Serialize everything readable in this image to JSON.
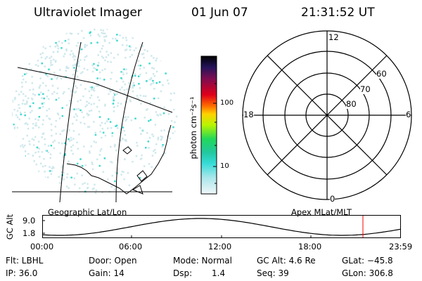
{
  "header": {
    "title": "Ultraviolet Imager",
    "date": "01 Jun 07",
    "time": "21:31:52 UT"
  },
  "geo_panel": {
    "label": "Geographic Lat/Lon"
  },
  "colorbar": {
    "unit_label": "photon cm⁻²s⁻¹",
    "ticks": [
      "100",
      "10"
    ]
  },
  "polar_panel": {
    "label": "Apex MLat/MLT",
    "mlt_labels": {
      "top": "12",
      "left": "18",
      "right": "6",
      "bottom": "0"
    },
    "lat_labels": [
      "60",
      "70",
      "80"
    ]
  },
  "altitude_plot": {
    "ylabel": "GC Alt",
    "yticks": [
      "9.0",
      "1.8"
    ],
    "xticks": [
      "00:00",
      "06:00",
      "12:00",
      "18:00",
      "23:59"
    ],
    "marker_color": "#ff0000"
  },
  "status": {
    "flt": "Flt: LBHL",
    "ip": "IP: 36.0",
    "door": "Door: Open",
    "gain": "Gain: 14",
    "mode": "Mode: Normal",
    "dsp_label": "Dsp:",
    "dsp_value": "1.4",
    "gc_alt": "GC Alt: 4.6 Re",
    "seq": "Seq: 39",
    "glat": "GLat: −45.8",
    "glon": "GLon: 306.8"
  },
  "colors": {
    "background": "#ffffff",
    "foreground": "#000000",
    "dim_emission": "#cfe8ec",
    "bright_emission": "#3fd9d0"
  }
}
